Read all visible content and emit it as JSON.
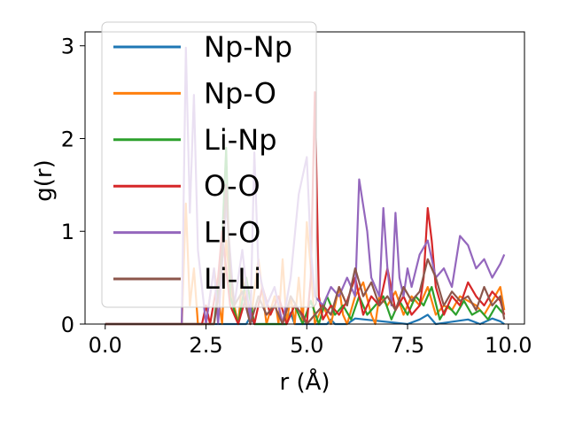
{
  "chart_data": {
    "type": "line",
    "title": "",
    "xlabel": "r (Å)",
    "ylabel": "g(r)",
    "xlim": [
      -0.5,
      10.4
    ],
    "ylim": [
      0,
      3.15
    ],
    "xticks": [
      0.0,
      2.5,
      5.0,
      7.5,
      10.0
    ],
    "xtick_labels": [
      "0.0",
      "2.5",
      "5.0",
      "7.5",
      "10.0"
    ],
    "yticks": [
      0,
      1,
      2,
      3
    ],
    "ytick_labels": [
      "0",
      "1",
      "2",
      "3"
    ],
    "grid": false,
    "legend_position": "top-left",
    "series": [
      {
        "name": "Np-Np",
        "color": "#1f77b4",
        "x": [
          0,
          3.5,
          3.6,
          3.7,
          4.5,
          4.6,
          4.7,
          5.5,
          5.6,
          5.7,
          6.0,
          6.2,
          7.5,
          7.8,
          8.0,
          8.2,
          9.0,
          9.3,
          9.6,
          9.8,
          9.9
        ],
        "y": [
          0,
          0,
          0.08,
          0,
          0,
          0.12,
          0,
          0,
          0.05,
          0,
          0,
          0.06,
          0,
          0.05,
          0.1,
          0,
          0.05,
          0,
          0.06,
          0.03,
          0
        ]
      },
      {
        "name": "Np-O",
        "color": "#ff7f0e",
        "x": [
          0,
          1.9,
          2.0,
          2.1,
          2.2,
          2.3,
          2.5,
          2.7,
          2.8,
          2.9,
          3.0,
          3.1,
          3.3,
          3.4,
          3.6,
          3.8,
          4.0,
          4.2,
          4.3,
          4.4,
          4.5,
          4.6,
          4.7,
          4.8,
          4.9,
          5.0,
          5.1,
          5.2,
          5.4,
          5.6,
          5.8,
          5.9,
          6.0,
          6.2,
          6.4,
          6.6,
          6.7,
          6.8,
          7.0,
          7.2,
          7.4,
          7.6,
          7.8,
          8.0,
          8.2,
          8.4,
          8.6,
          8.8,
          9.0,
          9.2,
          9.4,
          9.6,
          9.8,
          9.9
        ],
        "y": [
          0,
          0,
          1.3,
          0.2,
          0.6,
          0,
          0,
          0.6,
          0.3,
          0,
          0.9,
          0.4,
          0,
          0.5,
          0,
          0.7,
          0,
          0.3,
          0,
          0.7,
          0,
          0.3,
          0,
          0.5,
          0,
          1.1,
          0.6,
          0,
          0.2,
          0,
          0.4,
          0.1,
          0,
          0.3,
          0.45,
          0.1,
          0,
          0.3,
          0.2,
          0.35,
          0.1,
          0.3,
          0.2,
          0.4,
          0.1,
          0.2,
          0.15,
          0.3,
          0.25,
          0.2,
          0.1,
          0.25,
          0.4,
          0.15
        ]
      },
      {
        "name": "Li-Np",
        "color": "#2ca02c",
        "x": [
          0,
          2.7,
          2.8,
          2.9,
          3.0,
          3.1,
          3.3,
          3.5,
          3.7,
          4.5,
          4.7,
          4.9,
          5.1,
          5.3,
          5.5,
          5.7,
          5.9,
          6.1,
          6.3,
          6.5,
          6.7,
          6.9,
          7.1,
          7.3,
          7.5,
          7.7,
          7.9,
          8.1,
          8.3,
          8.5,
          8.7,
          8.9,
          9.1,
          9.3,
          9.5,
          9.7,
          9.9
        ],
        "y": [
          0,
          0,
          0.4,
          0.9,
          1.9,
          0.3,
          0,
          0.5,
          0,
          0,
          0.2,
          0,
          0.25,
          0,
          0.3,
          0.1,
          0.2,
          0.05,
          0.3,
          0.1,
          0.2,
          0.3,
          0.05,
          0.25,
          0.1,
          0.3,
          0.2,
          0.4,
          0.05,
          0.2,
          0.1,
          0.25,
          0.1,
          0.15,
          0.05,
          0.2,
          0.1
        ]
      },
      {
        "name": "O-O",
        "color": "#d62728",
        "x": [
          0,
          2.4,
          2.5,
          2.6,
          2.8,
          2.9,
          3.0,
          3.1,
          3.3,
          3.5,
          3.7,
          3.9,
          4.1,
          4.3,
          4.5,
          4.7,
          4.9,
          5.0,
          5.1,
          5.2,
          5.3,
          5.4,
          5.6,
          5.8,
          6.0,
          6.2,
          6.4,
          6.6,
          6.8,
          7.0,
          7.2,
          7.4,
          7.6,
          7.8,
          7.9,
          8.0,
          8.1,
          8.2,
          8.4,
          8.6,
          8.8,
          9.0,
          9.2,
          9.4,
          9.6,
          9.8,
          9.9
        ],
        "y": [
          0,
          0,
          0.2,
          0,
          0.5,
          1.0,
          0.6,
          0.2,
          0,
          0.3,
          0,
          0.4,
          0.1,
          0.3,
          0,
          0.2,
          0.1,
          0,
          0.5,
          2.5,
          0.3,
          0.05,
          0.2,
          0.1,
          0.25,
          0.5,
          0.1,
          0.3,
          0.2,
          0.6,
          0.15,
          0.3,
          0.1,
          0.2,
          0.5,
          1.25,
          0.9,
          0.4,
          0.1,
          0.3,
          0.2,
          0.45,
          0.3,
          0.2,
          0.35,
          0.25,
          0.1
        ]
      },
      {
        "name": "Li-O",
        "color": "#9467bd",
        "x": [
          0,
          1.9,
          2.0,
          2.1,
          2.2,
          2.3,
          2.5,
          2.7,
          2.8,
          3.0,
          3.2,
          3.4,
          3.6,
          3.7,
          3.8,
          4.0,
          4.2,
          4.4,
          4.6,
          4.8,
          5.0,
          5.1,
          5.2,
          5.4,
          5.6,
          5.8,
          6.0,
          6.2,
          6.3,
          6.5,
          6.6,
          6.8,
          6.9,
          7.0,
          7.1,
          7.2,
          7.3,
          7.4,
          7.5,
          7.6,
          7.8,
          8.0,
          8.2,
          8.4,
          8.6,
          8.8,
          9.0,
          9.2,
          9.4,
          9.6,
          9.8,
          9.9
        ],
        "y": [
          0,
          0,
          2.98,
          1.2,
          2.47,
          0.8,
          0,
          0.6,
          0,
          1.3,
          0.2,
          0.8,
          0,
          1.85,
          0.6,
          0.2,
          0.4,
          0,
          0.5,
          1.4,
          1.8,
          0.8,
          0.3,
          0.2,
          0.4,
          0.3,
          0.5,
          0.3,
          1.56,
          1.0,
          0.5,
          0.3,
          1.25,
          0.6,
          0.2,
          1.2,
          0.5,
          0.3,
          0.6,
          0.4,
          0.75,
          0.9,
          0.5,
          0.6,
          0.4,
          0.95,
          0.85,
          0.6,
          0.7,
          0.5,
          0.65,
          0.75
        ]
      },
      {
        "name": "Li-Li",
        "color": "#8c564b",
        "x": [
          0,
          2.7,
          2.8,
          2.9,
          3.0,
          3.1,
          3.2,
          3.4,
          3.6,
          3.8,
          4.0,
          4.2,
          4.4,
          4.6,
          4.8,
          5.0,
          5.2,
          5.4,
          5.6,
          5.8,
          6.0,
          6.2,
          6.4,
          6.6,
          6.8,
          7.0,
          7.2,
          7.4,
          7.6,
          7.8,
          8.0,
          8.2,
          8.4,
          8.6,
          8.8,
          9.0,
          9.2,
          9.4,
          9.6,
          9.8,
          9.9
        ],
        "y": [
          0,
          0,
          0.3,
          0.7,
          1.5,
          0.6,
          0.2,
          0.35,
          0,
          0.3,
          0.1,
          0.2,
          0,
          0.3,
          0.15,
          0,
          0.1,
          0.2,
          0.1,
          0.4,
          0.2,
          0.6,
          0.3,
          0.45,
          0.2,
          0.3,
          0.15,
          0.4,
          0.25,
          0.35,
          0.7,
          0.5,
          0.2,
          0.35,
          0.25,
          0.3,
          0.15,
          0.4,
          0.2,
          0.3,
          0.05
        ]
      }
    ]
  }
}
